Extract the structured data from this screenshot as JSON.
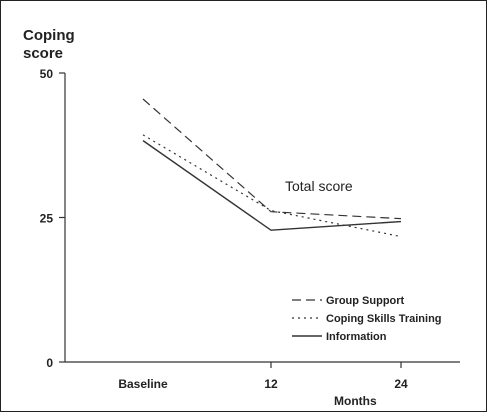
{
  "chart_data": {
    "type": "line",
    "title": "Total score",
    "ylabel_line1": "Coping",
    "ylabel_line2": "score",
    "xlabel": "Months",
    "categories": [
      "Baseline",
      "12",
      "24"
    ],
    "y_ticks": [
      "50",
      "25",
      "0"
    ],
    "ylim": [
      0,
      50
    ],
    "series": [
      {
        "name": "Group Support",
        "style": "dashed",
        "values": [
          45.5,
          26,
          24.8
        ]
      },
      {
        "name": "Coping Skills Training",
        "style": "dotted",
        "values": [
          39.3,
          26.2,
          21.7
        ]
      },
      {
        "name": "Information",
        "style": "solid",
        "values": [
          38.3,
          22.8,
          24.3
        ]
      }
    ],
    "legend_position": "bottom-right",
    "line_color": "#333333"
  }
}
